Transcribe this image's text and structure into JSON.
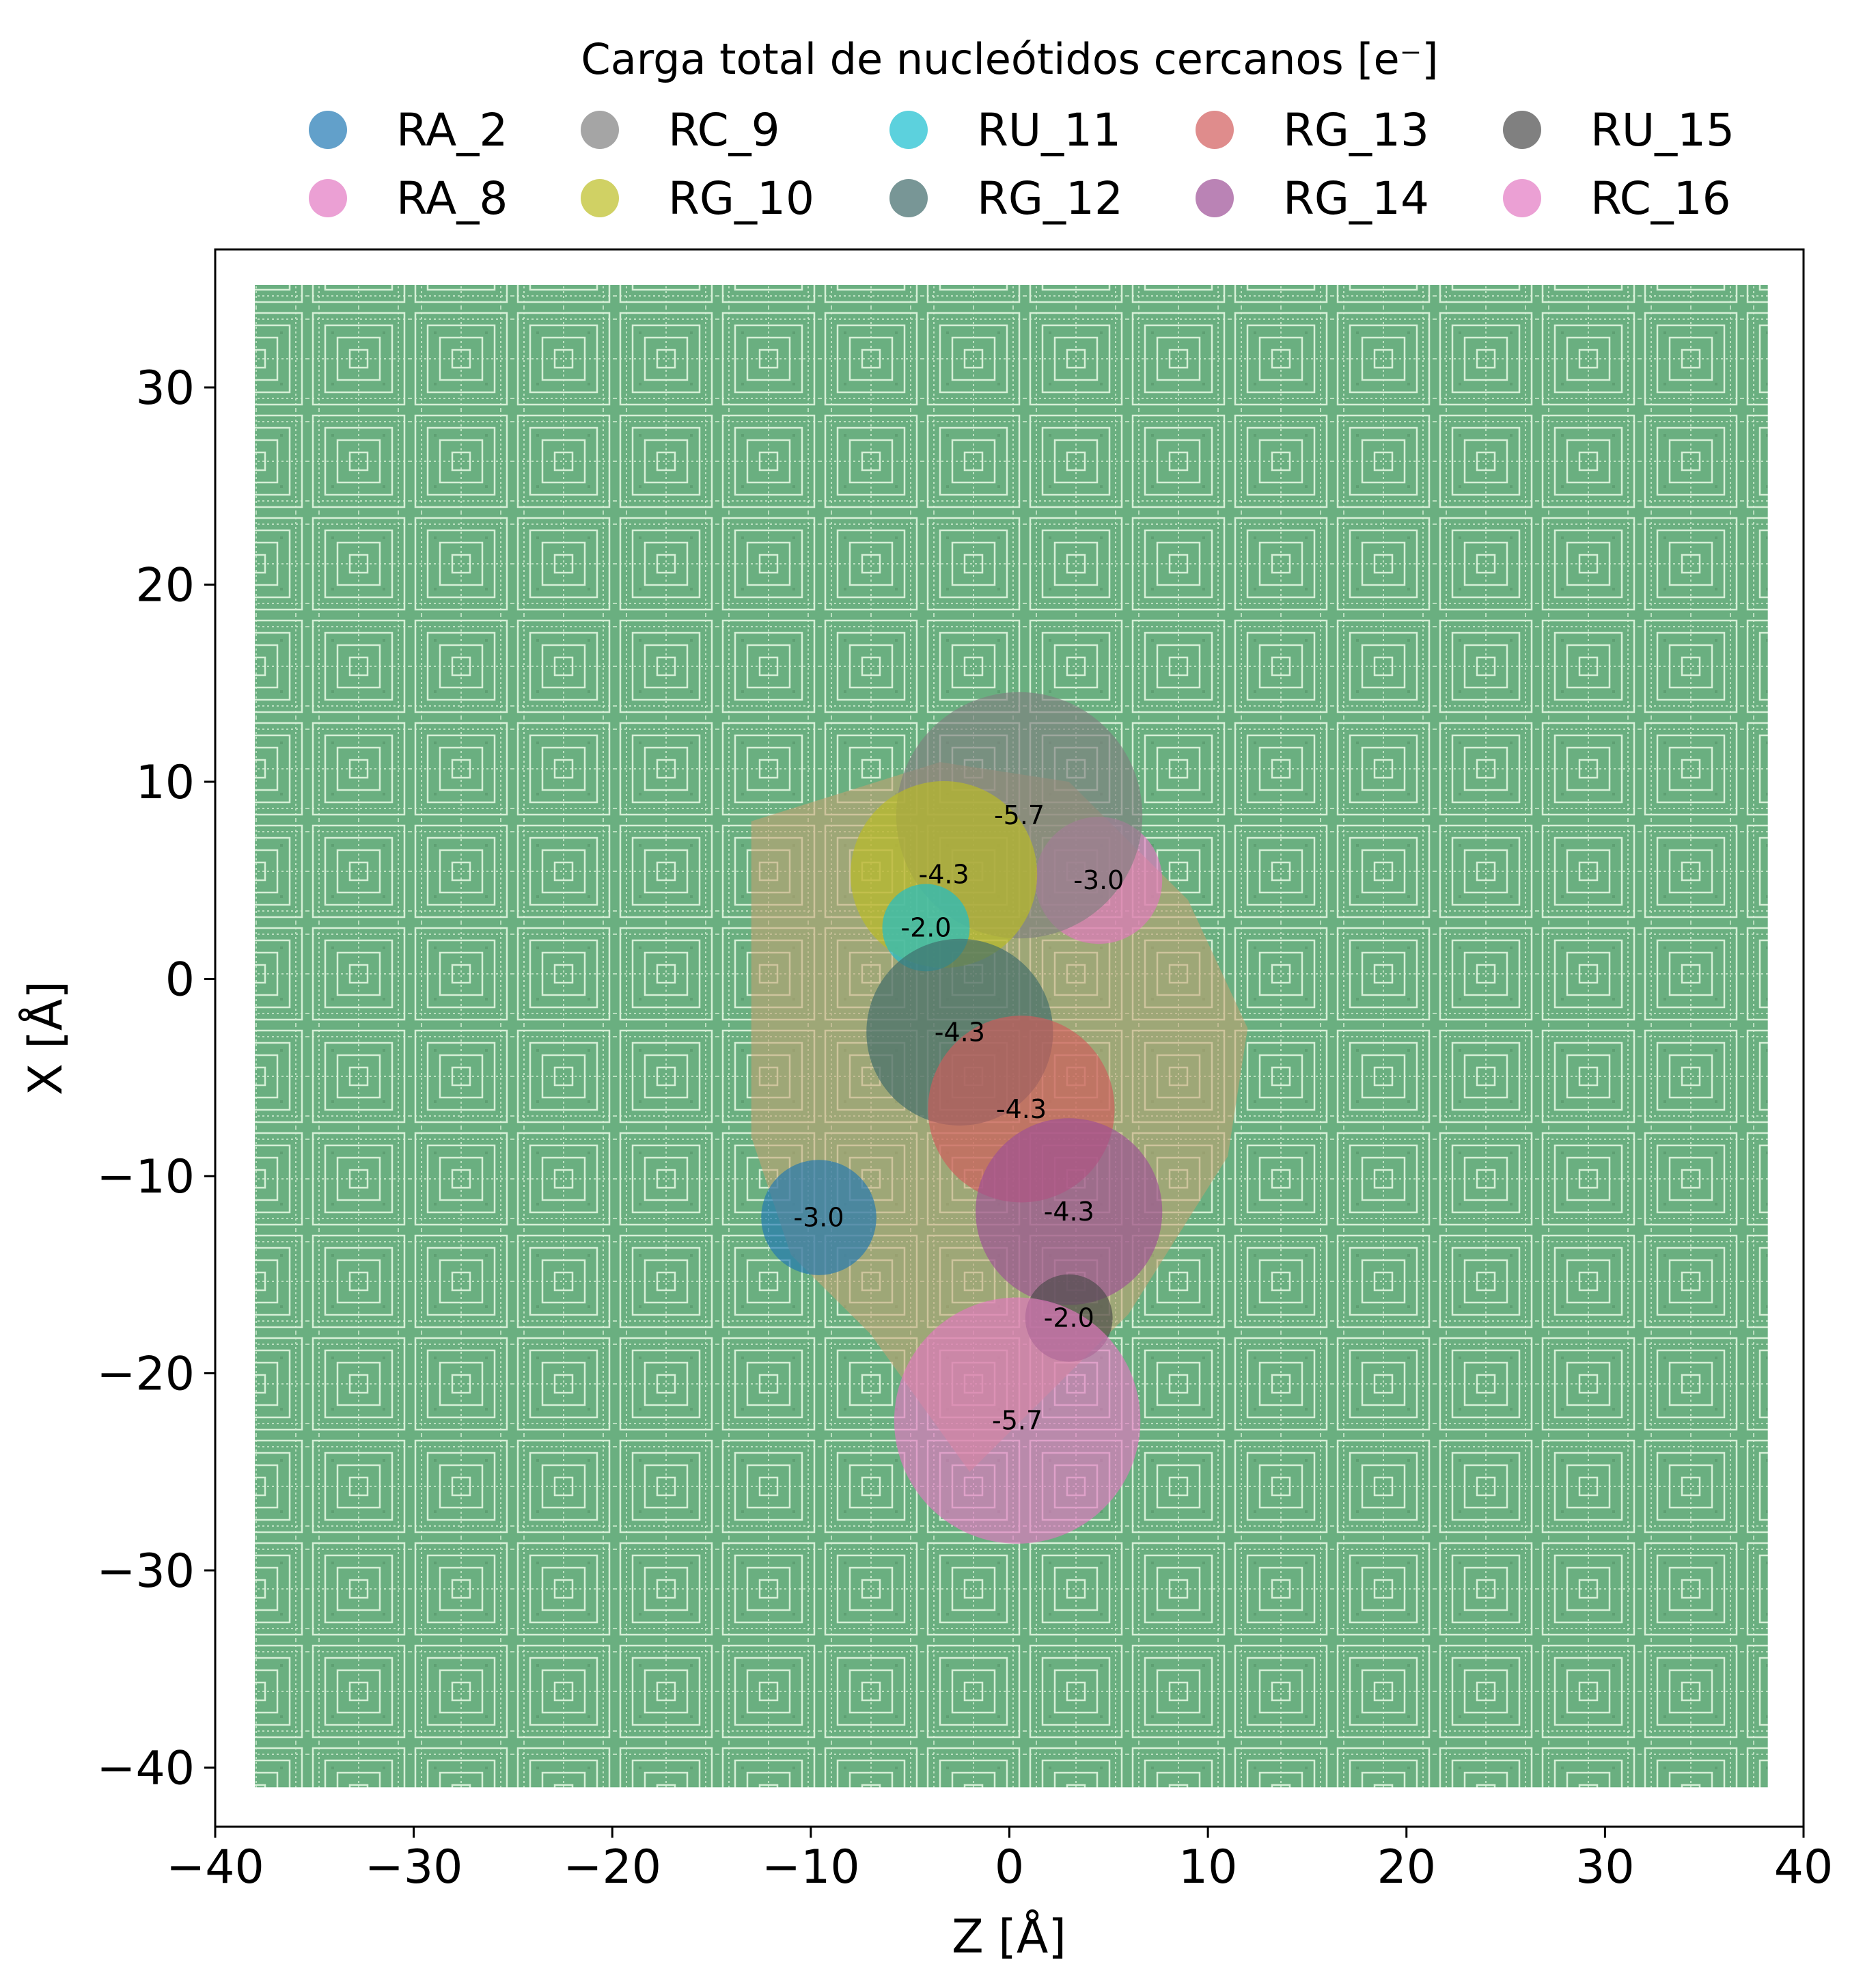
{
  "chart_data": {
    "type": "scatter",
    "title": "",
    "xlabel": "Z [Å]",
    "ylabel": "X [Å]",
    "xlim": [
      -40,
      40
    ],
    "ylim": [
      -43,
      37
    ],
    "xticks": [
      -40,
      -30,
      -20,
      -10,
      0,
      10,
      20,
      30,
      40
    ],
    "yticks": [
      -40,
      -30,
      -20,
      -10,
      0,
      10,
      20,
      30
    ],
    "grid": false,
    "legend": {
      "title": "Carga total de nucleótidos cercanos [e⁻]",
      "placement": "top-center",
      "columns": 5
    },
    "background_grid_region": {
      "x": [
        -38,
        38.2
      ],
      "y": [
        -41,
        35.2
      ],
      "color": "#6aaf80",
      "light_color": "#d6efd6"
    },
    "hull_region": {
      "color": "#c9a070",
      "points": [
        [
          -13,
          8
        ],
        [
          -3.5,
          11
        ],
        [
          3,
          10
        ],
        [
          9,
          4
        ],
        [
          12,
          -2.5
        ],
        [
          11,
          -9
        ],
        [
          6,
          -17
        ],
        [
          -2,
          -25
        ],
        [
          -7,
          -18
        ],
        [
          -11,
          -14
        ],
        [
          -13,
          -8
        ]
      ]
    },
    "series": [
      {
        "name": "RA_2",
        "color": "#1f77b4",
        "x": -9.6,
        "y": -12.1,
        "r": 2.9,
        "charge": "-3.0"
      },
      {
        "name": "RA_8",
        "color": "#e377c2",
        "x": 4.5,
        "y": 5.0,
        "r": 3.2,
        "charge": "-3.0"
      },
      {
        "name": "RC_9",
        "color": "#7f7f7f",
        "x": 0.5,
        "y": 8.3,
        "r": 6.2,
        "charge": "-5.7"
      },
      {
        "name": "RG_10",
        "color": "#bcbd22",
        "x": -3.3,
        "y": 5.3,
        "r": 4.7,
        "charge": "-4.3"
      },
      {
        "name": "RU_11",
        "color": "#17becf",
        "x": -4.2,
        "y": 2.6,
        "r": 2.2,
        "charge": "-2.0"
      },
      {
        "name": "RG_12",
        "color": "#3e6a6a",
        "x": -2.5,
        "y": -2.7,
        "r": 4.7,
        "charge": "-4.3"
      },
      {
        "name": "RG_13",
        "color": "#d15b5b",
        "x": 0.6,
        "y": -6.6,
        "r": 4.7,
        "charge": "-4.3"
      },
      {
        "name": "RG_14",
        "color": "#9c4f96",
        "x": 3.0,
        "y": -11.8,
        "r": 4.7,
        "charge": "-4.3"
      },
      {
        "name": "RU_15",
        "color": "#4a4a4a",
        "x": 3.0,
        "y": -17.2,
        "r": 2.2,
        "charge": "-2.0"
      },
      {
        "name": "RC_16",
        "color": "#e377c2",
        "x": 0.4,
        "y": -22.4,
        "r": 6.2,
        "charge": "-5.7"
      }
    ]
  }
}
